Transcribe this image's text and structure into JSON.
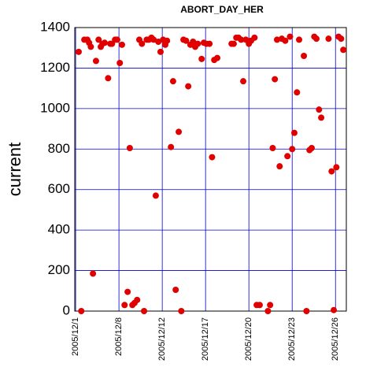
{
  "chart_data": {
    "type": "scatter",
    "title": "ABORT_DAY_HER",
    "y_label": "current",
    "xlim": [
      -0.02,
      6.25
    ],
    "ylim": [
      0,
      1400
    ],
    "xticks": [
      {
        "value": 0,
        "label": "2005/12/1"
      },
      {
        "value": 1,
        "label": "2005/12/8"
      },
      {
        "value": 2,
        "label": "2005/12/12"
      },
      {
        "value": 3,
        "label": "2005/12/17"
      },
      {
        "value": 4,
        "label": "2005/12/20"
      },
      {
        "value": 5,
        "label": "2005/12/23"
      },
      {
        "value": 6,
        "label": "2005/12/26"
      }
    ],
    "yticks": [
      0,
      200,
      400,
      600,
      800,
      1000,
      1200,
      1400
    ],
    "grid": true,
    "grid_color": "#0000cc",
    "series": [
      {
        "color": "#e00000",
        "x": [
          0.07,
          0.13,
          0.2,
          0.27,
          0.31,
          0.35,
          0.4,
          0.47,
          0.53,
          0.58,
          0.62,
          0.67,
          0.75,
          0.8,
          0.84,
          0.91,
          0.96,
          1.02,
          1.07,
          1.13,
          1.2,
          1.25,
          1.31,
          1.36,
          1.42,
          1.47,
          1.53,
          1.58,
          1.64,
          1.69,
          1.75,
          1.8,
          1.85,
          1.91,
          1.96,
          2.02,
          2.07,
          2.11,
          2.2,
          2.25,
          2.31,
          2.38,
          2.44,
          2.49,
          2.55,
          2.6,
          2.65,
          2.71,
          2.76,
          2.82,
          2.91,
          2.96,
          3.02,
          3.09,
          3.15,
          3.2,
          3.27,
          3.6,
          3.65,
          3.71,
          3.76,
          3.82,
          3.87,
          3.93,
          4,
          4.05,
          4.13,
          4.18,
          4.25,
          4.44,
          4.49,
          4.55,
          4.6,
          4.65,
          4.71,
          4.76,
          4.84,
          4.89,
          4.95,
          5,
          5.05,
          5.11,
          5.16,
          5.27,
          5.33,
          5.4,
          5.45,
          5.51,
          5.56,
          5.62,
          5.67,
          5.84,
          5.91,
          5.96,
          6.02,
          6.07,
          6.13,
          6.18
        ],
        "values": [
          1280,
          0,
          1340,
          1340,
          1325,
          1305,
          185,
          1235,
          1340,
          1305,
          1320,
          1325,
          1150,
          1320,
          1320,
          1340,
          1340,
          1225,
          1315,
          30,
          95,
          805,
          30,
          40,
          55,
          1340,
          1320,
          0,
          1340,
          1340,
          1350,
          1340,
          570,
          1330,
          1280,
          1340,
          1315,
          1335,
          810,
          1135,
          105,
          885,
          0,
          1340,
          1335,
          1110,
          1315,
          1330,
          1305,
          1320,
          1245,
          1325,
          1320,
          1320,
          760,
          1240,
          1250,
          1320,
          1320,
          1350,
          1350,
          1340,
          1135,
          1340,
          1320,
          1335,
          1350,
          30,
          30,
          0,
          30,
          805,
          1145,
          1340,
          715,
          1345,
          1335,
          765,
          1355,
          800,
          880,
          1080,
          1340,
          1260,
          0,
          795,
          805,
          1355,
          1345,
          995,
          955,
          1345,
          690,
          5,
          710,
          1355,
          1345,
          1290
        ]
      }
    ]
  }
}
